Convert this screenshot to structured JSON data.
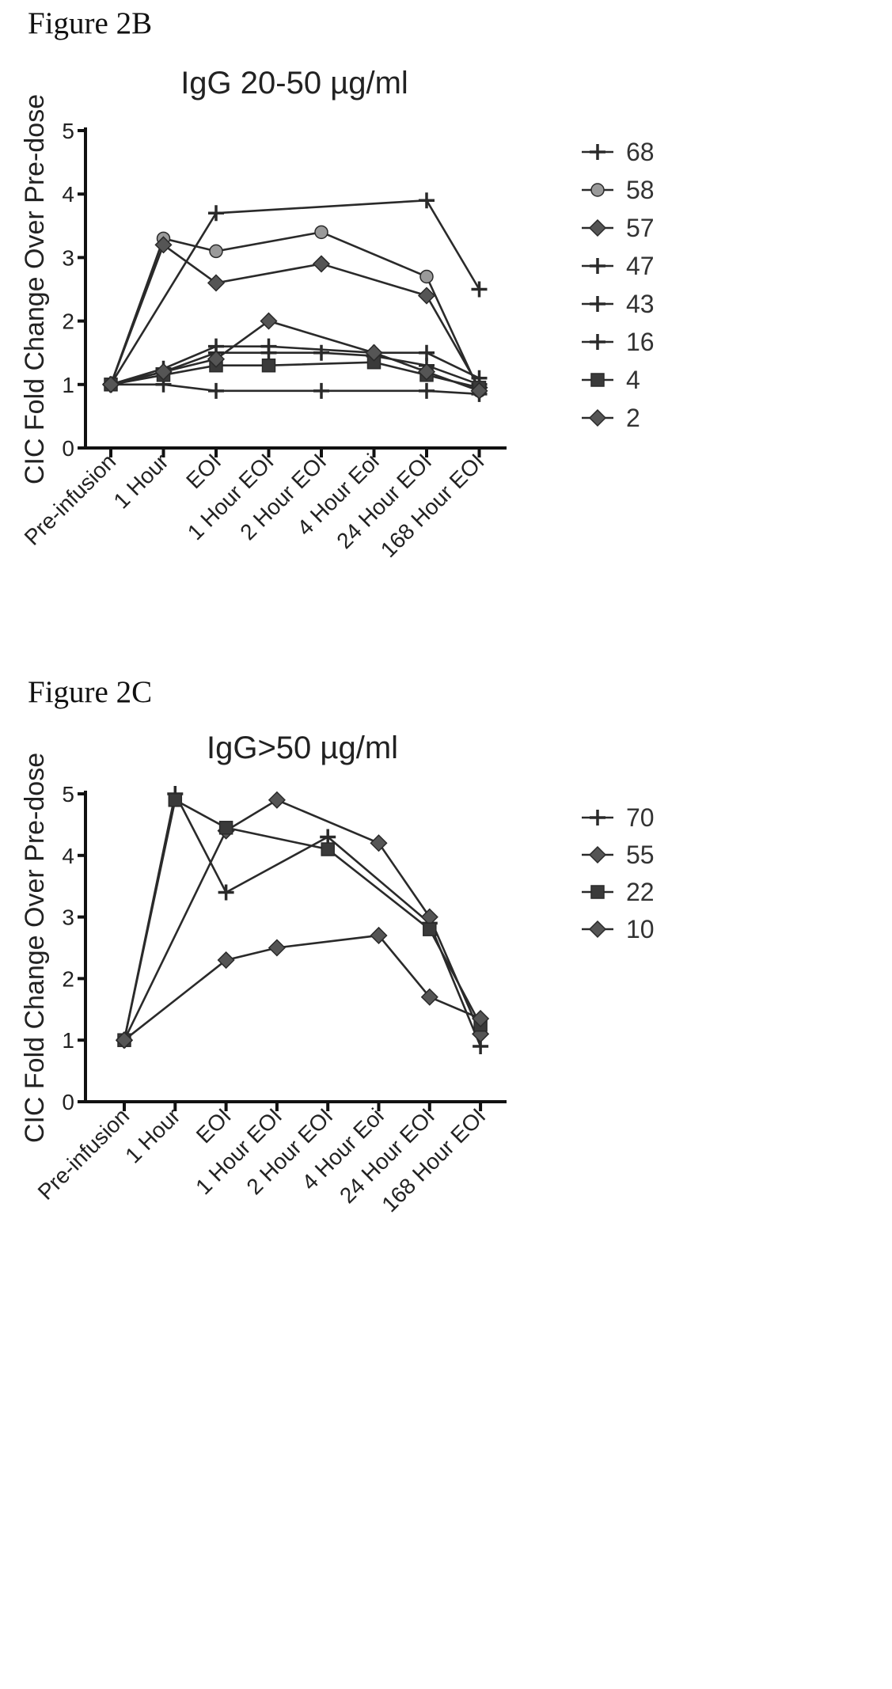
{
  "figures": [
    {
      "label": "Figure 2B"
    },
    {
      "label": "Figure 2C"
    }
  ],
  "chart_data": [
    {
      "type": "line",
      "title": "IgG 20-50 µg/ml",
      "xlabel": "",
      "ylabel": "CIC Fold Change Over Pre-dose",
      "ylim": [
        0,
        5
      ],
      "yticks": [
        "0",
        "1",
        "2",
        "3",
        "4",
        "5"
      ],
      "categories": [
        "Pre-infusion",
        "1 Hour",
        "EOI",
        "1 Hour EOI",
        "2 Hour EOI",
        "4 Hour Eoi",
        "24 Hour EOI",
        "168 Hour EOI"
      ],
      "grid": false,
      "legend_position": "right",
      "series": [
        {
          "name": "68",
          "marker": "plus",
          "values": [
            1.0,
            1.0,
            0.9,
            null,
            0.9,
            null,
            0.9,
            0.85
          ]
        },
        {
          "name": "58",
          "marker": "circle",
          "values": [
            1.0,
            3.3,
            3.1,
            null,
            3.4,
            null,
            2.7,
            0.9
          ]
        },
        {
          "name": "57",
          "marker": "diamond",
          "values": [
            1.0,
            3.2,
            2.6,
            null,
            2.9,
            null,
            2.4,
            0.95
          ]
        },
        {
          "name": "47",
          "marker": "plus",
          "values": [
            1.0,
            null,
            3.7,
            null,
            null,
            null,
            3.9,
            2.5
          ]
        },
        {
          "name": "43",
          "marker": "plus",
          "values": [
            1.0,
            1.25,
            1.6,
            1.6,
            null,
            1.5,
            1.5,
            1.1
          ]
        },
        {
          "name": "16",
          "marker": "plus",
          "values": [
            1.0,
            1.2,
            1.5,
            1.5,
            1.5,
            1.45,
            1.3,
            1.0
          ]
        },
        {
          "name": "4",
          "marker": "square",
          "values": [
            1.0,
            1.15,
            1.3,
            1.3,
            null,
            1.35,
            1.15,
            0.95
          ]
        },
        {
          "name": "2",
          "marker": "diamond",
          "values": [
            1.0,
            1.2,
            1.4,
            2.0,
            null,
            1.5,
            1.2,
            0.9
          ]
        }
      ]
    },
    {
      "type": "line",
      "title": "IgG>50 µg/ml",
      "xlabel": "",
      "ylabel": "CIC Fold Change Over Pre-dose",
      "ylim": [
        0,
        5
      ],
      "yticks": [
        "0",
        "1",
        "2",
        "3",
        "4",
        "5"
      ],
      "categories": [
        "Pre-infusion",
        "1 Hour",
        "EOI",
        "1 Hour EOI",
        "2 Hour EOI",
        "4 Hour Eoi",
        "24 Hour EOI",
        "168 Hour EOI"
      ],
      "grid": false,
      "legend_position": "right",
      "series": [
        {
          "name": "70",
          "marker": "plus",
          "values": [
            1.0,
            5.0,
            3.4,
            null,
            4.3,
            null,
            2.9,
            0.9
          ]
        },
        {
          "name": "55",
          "marker": "diamond",
          "values": [
            1.0,
            null,
            4.4,
            4.9,
            null,
            4.2,
            3.0,
            1.1
          ]
        },
        {
          "name": "22",
          "marker": "square",
          "values": [
            1.0,
            4.9,
            4.45,
            null,
            4.1,
            null,
            2.8,
            1.25
          ]
        },
        {
          "name": "10",
          "marker": "diamond",
          "values": [
            1.0,
            null,
            2.3,
            2.5,
            null,
            2.7,
            1.7,
            1.35
          ]
        }
      ]
    }
  ]
}
